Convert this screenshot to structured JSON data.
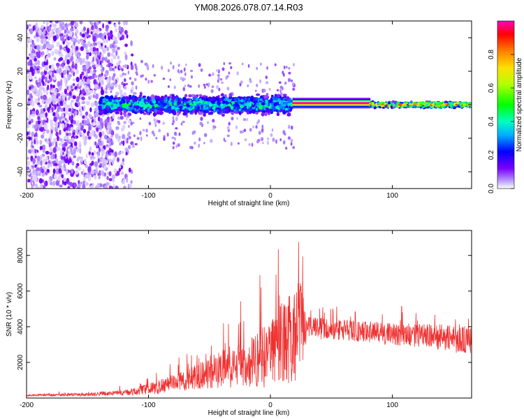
{
  "chart_data": [
    {
      "type": "heatmap",
      "title": "YM08.2026.078.07.14.R03",
      "xlabel": "Height of straight line (km)",
      "ylabel": "Frequency (Hz)",
      "xlim": [
        -200,
        165
      ],
      "ylim": [
        -50,
        50
      ],
      "x_ticks": [
        "-200",
        "-100",
        "0",
        "100"
      ],
      "y_ticks": [
        "-40",
        "-20",
        "0",
        "20",
        "40"
      ],
      "colorbar": {
        "label": "Normalized spectral amplitude",
        "range": [
          0,
          1
        ],
        "ticks": [
          "0.0",
          "0.2",
          "0.4",
          "0.6",
          "0.8"
        ]
      },
      "regions": [
        {
          "x": [
            -200,
            -140
          ],
          "description": "scattered low-amplitude noise across band"
        },
        {
          "x": [
            -140,
            18
          ],
          "center_freq": 0,
          "spread_hz": 8,
          "peak_amplitude": 0.45
        },
        {
          "x": [
            18,
            82
          ],
          "center_freq": 1,
          "spread_hz": 1.5,
          "peak_amplitude": 1.0
        },
        {
          "x": [
            82,
            165
          ],
          "center_freq": 0,
          "spread_hz": 3,
          "peak_amplitude": 0.85
        }
      ]
    },
    {
      "type": "line",
      "xlabel": "Height of straight line (km)",
      "ylabel": "SNR (10 * v/v)",
      "xlim": [
        -200,
        165
      ],
      "ylim": [
        0,
        9400
      ],
      "x_ticks": [
        "-200",
        "-100",
        "0",
        "100"
      ],
      "y_ticks": [
        "2000",
        "4000",
        "6000",
        "8000"
      ],
      "series": [
        {
          "name": "SNR",
          "color": "#f03030",
          "x": [
            -200,
            -150,
            -120,
            -100,
            -80,
            -60,
            -40,
            -20,
            0,
            10,
            20,
            25,
            30,
            40,
            60,
            80,
            100,
            120,
            140,
            150,
            165
          ],
          "mean": [
            150,
            200,
            300,
            500,
            800,
            1200,
            1600,
            2000,
            2500,
            3000,
            3500,
            4000,
            3900,
            3900,
            3800,
            3700,
            3600,
            3500,
            3400,
            3300,
            3200
          ],
          "spread": [
            80,
            120,
            200,
            400,
            700,
            1000,
            1400,
            1900,
            2600,
            3200,
            3600,
            3600,
            900,
            800,
            800,
            800,
            900,
            900,
            1000,
            1000,
            1100
          ]
        }
      ]
    }
  ]
}
